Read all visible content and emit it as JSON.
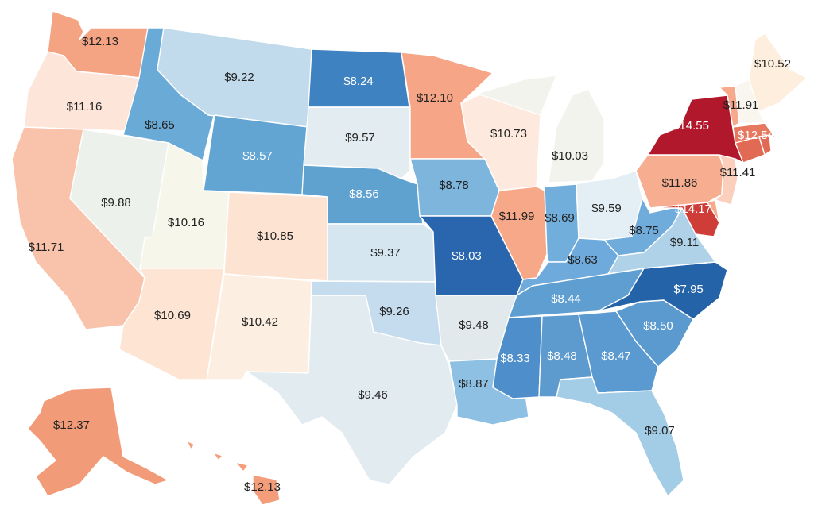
{
  "chart_data": {
    "type": "choropleth",
    "region": "United States",
    "states": [
      {
        "id": "WA",
        "label": "$12.13",
        "value": 12.13
      },
      {
        "id": "OR",
        "label": "$11.16",
        "value": 11.16
      },
      {
        "id": "CA",
        "label": "$11.71",
        "value": 11.71
      },
      {
        "id": "NV",
        "label": "$9.88",
        "value": 9.88
      },
      {
        "id": "ID",
        "label": "$8.65",
        "value": 8.65
      },
      {
        "id": "MT",
        "label": "$9.22",
        "value": 9.22
      },
      {
        "id": "WY",
        "label": "$8.57",
        "value": 8.57
      },
      {
        "id": "UT",
        "label": "$10.16",
        "value": 10.16
      },
      {
        "id": "AZ",
        "label": "$10.69",
        "value": 10.69
      },
      {
        "id": "CO",
        "label": "$10.85",
        "value": 10.85
      },
      {
        "id": "NM",
        "label": "$10.42",
        "value": 10.42
      },
      {
        "id": "ND",
        "label": "$8.24",
        "value": 8.24
      },
      {
        "id": "SD",
        "label": "$9.57",
        "value": 9.57
      },
      {
        "id": "NE",
        "label": "$8.56",
        "value": 8.56
      },
      {
        "id": "KS",
        "label": "$9.37",
        "value": 9.37
      },
      {
        "id": "OK",
        "label": "$9.26",
        "value": 9.26
      },
      {
        "id": "TX",
        "label": "$9.46",
        "value": 9.46
      },
      {
        "id": "MN",
        "label": "$12.10",
        "value": 12.1
      },
      {
        "id": "IA",
        "label": "$8.78",
        "value": 8.78
      },
      {
        "id": "MO",
        "label": "$8.03",
        "value": 8.03
      },
      {
        "id": "AR",
        "label": "$9.48",
        "value": 9.48
      },
      {
        "id": "LA",
        "label": "$8.87",
        "value": 8.87
      },
      {
        "id": "WI",
        "label": "$10.73",
        "value": 10.73
      },
      {
        "id": "IL",
        "label": "$11.99",
        "value": 11.99
      },
      {
        "id": "MI",
        "label": "$10.03",
        "value": 10.03
      },
      {
        "id": "IN",
        "label": "$8.69",
        "value": 8.69
      },
      {
        "id": "OH",
        "label": "$9.59",
        "value": 9.59
      },
      {
        "id": "KY",
        "label": "$8.63",
        "value": 8.63
      },
      {
        "id": "TN",
        "label": "$8.44",
        "value": 8.44
      },
      {
        "id": "MS",
        "label": "$8.33",
        "value": 8.33
      },
      {
        "id": "AL",
        "label": "$8.48",
        "value": 8.48
      },
      {
        "id": "GA",
        "label": "$8.47",
        "value": 8.47
      },
      {
        "id": "FL",
        "label": "$9.07",
        "value": 9.07
      },
      {
        "id": "SC",
        "label": "$8.50",
        "value": 8.5
      },
      {
        "id": "NC",
        "label": "$7.95",
        "value": 7.95
      },
      {
        "id": "VA",
        "label": "$9.11",
        "value": 9.11
      },
      {
        "id": "WV",
        "label": "$8.75",
        "value": 8.75
      },
      {
        "id": "MD",
        "label": "$14.17",
        "value": 14.17
      },
      {
        "id": "PA",
        "label": "$11.86",
        "value": 11.86
      },
      {
        "id": "NJ",
        "label": "$11.41",
        "value": 11.41
      },
      {
        "id": "NY",
        "label": "$14.55",
        "value": 14.55
      },
      {
        "id": "CT",
        "label": "$12.54",
        "value": 12.54
      },
      {
        "id": "VT",
        "label": "$11.91",
        "value": 11.91
      },
      {
        "id": "ME",
        "label": "$10.52",
        "value": 10.52
      },
      {
        "id": "AK",
        "label": "$12.37",
        "value": 12.37
      },
      {
        "id": "HI",
        "label": "$12.13",
        "value": 12.13
      },
      {
        "id": "NH",
        "value": null
      },
      {
        "id": "MA",
        "value": null
      },
      {
        "id": "RI",
        "value": null
      },
      {
        "id": "DE",
        "value": null
      }
    ],
    "colors": {
      "WA": "#f4a383",
      "OR": "#fde5da",
      "CA": "#f9c3ab",
      "NV": "#edf1ec",
      "ID": "#6aaad6",
      "MT": "#c1dbed",
      "WY": "#62a5d3",
      "UT": "#f7f6ea",
      "AZ": "#fde4d3",
      "CO": "#fde3d2",
      "NM": "#fcefe1",
      "ND": "#3f82c2",
      "SD": "#e3ecf0",
      "NE": "#5fa1cf",
      "KS": "#d6e6f1",
      "OK": "#c5dcee",
      "TX": "#e1ebf0",
      "MN": "#f6a687",
      "IA": "#7eb5dd",
      "MO": "#2966ad",
      "AR": "#e1e9ed",
      "LA": "#8dc0e3",
      "WI": "#fde9de",
      "IL": "#f6a889",
      "MI": "#f1f3ec",
      "IN": "#72aedb",
      "OH": "#e4eef5",
      "KY": "#6eaadb",
      "TN": "#5e9ed1",
      "MS": "#4e8ecb",
      "AL": "#5d9ace",
      "GA": "#5b9ad0",
      "FL": "#a3cce6",
      "SC": "#5b9acf",
      "NC": "#2563a9",
      "VA": "#afd2e8",
      "WV": "#6fabdb",
      "MD": "#cf3d38",
      "PA": "#f7ad8f",
      "NJ": "#fccfbd",
      "NY": "#b2182b",
      "CT": "#e16a55",
      "VT": "#f7a98b",
      "ME": "#fdeedd",
      "AK": "#f19b78",
      "HI": "#f39d7b",
      "NH": "#f9f5ef",
      "MA": "#e5785f",
      "RI": "#e16a55",
      "DE": "#f6a98b"
    }
  }
}
